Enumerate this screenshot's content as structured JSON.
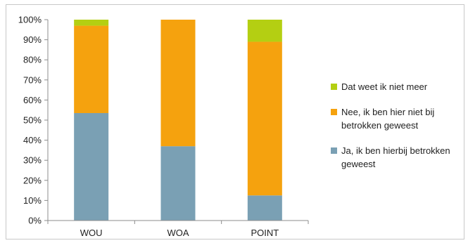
{
  "chart_data": {
    "type": "bar",
    "stacked": true,
    "categories": [
      "WOU",
      "WOA",
      "POINT"
    ],
    "series": [
      {
        "name": "Ja, ik ben hierbij betrokken geweest",
        "color": "#7aa0b4",
        "values": [
          53.5,
          37,
          12.5
        ]
      },
      {
        "name": "Nee, ik ben hier niet bij betrokken geweest",
        "color": "#f5a20e",
        "values": [
          43.5,
          63,
          76.5
        ]
      },
      {
        "name": "Dat weet ik niet meer",
        "color": "#b4cf12",
        "values": [
          3,
          0,
          11
        ]
      }
    ],
    "ylim": [
      0,
      100
    ],
    "yticks": [
      "0%",
      "10%",
      "20%",
      "30%",
      "40%",
      "50%",
      "60%",
      "70%",
      "80%",
      "90%",
      "100%"
    ],
    "legend_position": "right",
    "legend_order": [
      2,
      1,
      0
    ],
    "grid": false,
    "title": "",
    "xlabel": "",
    "ylabel": ""
  }
}
